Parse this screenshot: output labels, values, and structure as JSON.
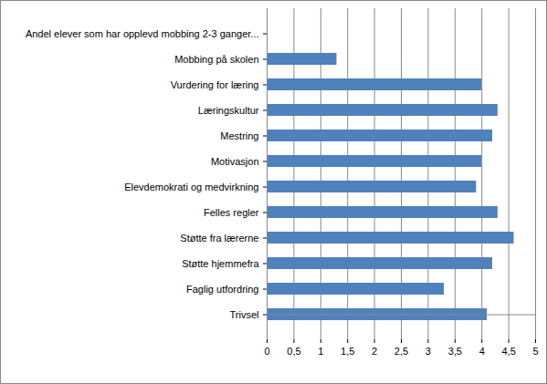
{
  "chart_data": {
    "type": "bar",
    "orientation": "horizontal",
    "categories": [
      "Andel elever som har opplevd mobbing 2-3 ganger...",
      "Mobbing på skolen",
      "Vurdering for læring",
      "Læringskultur",
      "Mestring",
      "Motivasjon",
      "Elevdemokrati og medvirkning",
      "Felles regler",
      "Støtte fra lærerne",
      "Støtte hjemmefra",
      "Faglig utfordring",
      "Trivsel"
    ],
    "values": [
      null,
      1.3,
      4.0,
      4.3,
      4.2,
      4.0,
      3.9,
      4.3,
      4.6,
      4.2,
      3.3,
      4.1
    ],
    "color": "#4f81bd",
    "xlim": [
      0,
      5
    ],
    "xticks": [
      0,
      {
        "value": 0.5,
        "label": "0,5"
      },
      1,
      {
        "value": 1.5,
        "label": "1,5"
      },
      2,
      {
        "value": 2.5,
        "label": "2,5"
      },
      3,
      {
        "value": 3.5,
        "label": "3,5"
      },
      4,
      {
        "value": 4.5,
        "label": "4,5"
      },
      5
    ],
    "grid": true
  }
}
